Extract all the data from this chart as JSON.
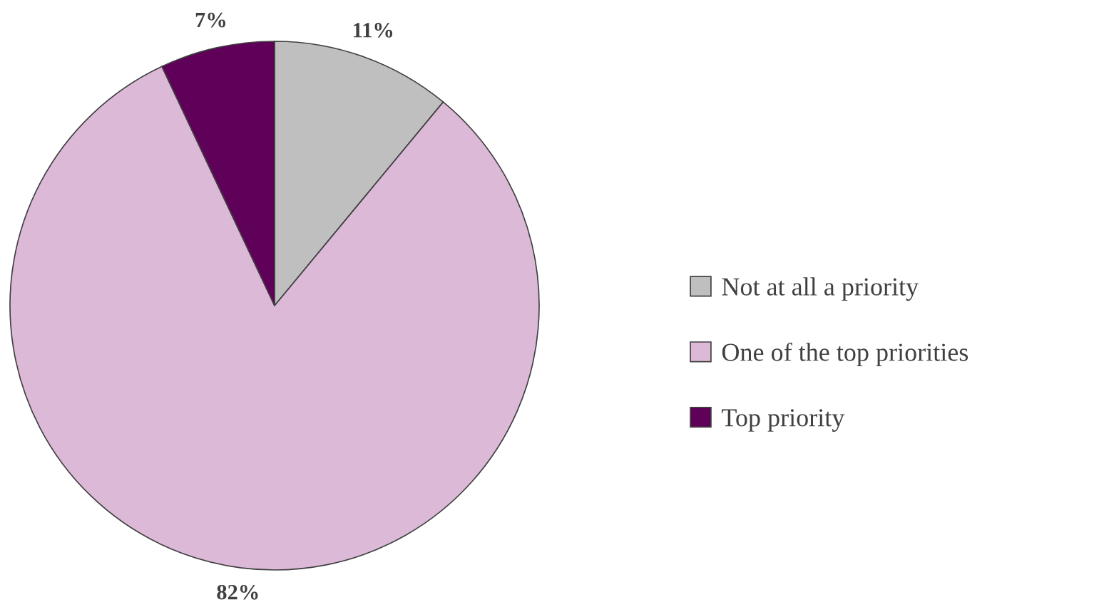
{
  "chart_data": {
    "type": "pie",
    "categories": [
      "Not at all a priority",
      "One of the top priorities",
      "Top priority"
    ],
    "values": [
      11,
      82,
      7
    ],
    "colors": [
      "#bfbfbf",
      "#dbb9d7",
      "#5f0059"
    ],
    "value_labels": [
      "11%",
      "82%",
      "7%"
    ],
    "legend": "right"
  }
}
